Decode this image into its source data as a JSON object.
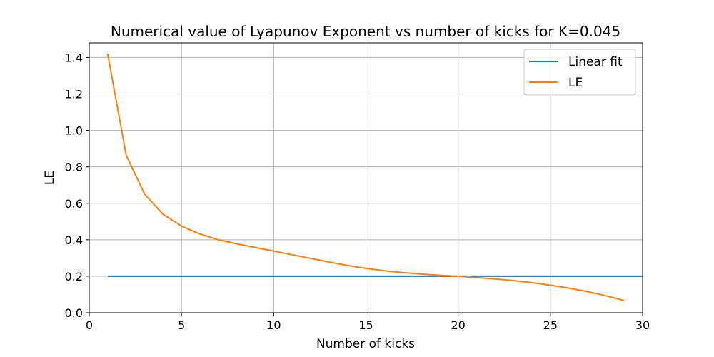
{
  "chart_data": {
    "type": "line",
    "title": "Numerical value of Lyapunov Exponent vs number of kicks for K=0.045",
    "xlabel": "Number of kicks",
    "ylabel": "LE",
    "xlim": [
      0,
      30
    ],
    "ylim": [
      0.0,
      1.48
    ],
    "xticks": [
      0,
      5,
      10,
      15,
      20,
      25,
      30
    ],
    "xtick_labels": [
      "0",
      "5",
      "10",
      "15",
      "20",
      "25",
      "30"
    ],
    "yticks": [
      0.0,
      0.2,
      0.4,
      0.6,
      0.8,
      1.0,
      1.2,
      1.4
    ],
    "ytick_labels": [
      "0.0",
      "0.2",
      "0.4",
      "0.6",
      "0.8",
      "1.0",
      "1.2",
      "1.4"
    ],
    "grid": true,
    "legend_position": "top-right",
    "series": [
      {
        "name": "Linear fit",
        "color": "#1f77b4",
        "x": [
          1,
          30
        ],
        "y": [
          0.2,
          0.2
        ]
      },
      {
        "name": "LE",
        "color": "#ff7f0e",
        "x": [
          1,
          2,
          3,
          4,
          5,
          6,
          7,
          8,
          9,
          10,
          11,
          12,
          13,
          14,
          15,
          16,
          17,
          18,
          19,
          20,
          21,
          22,
          23,
          24,
          25,
          26,
          27,
          28,
          29
        ],
        "y": [
          1.42,
          0.865,
          0.65,
          0.54,
          0.475,
          0.432,
          0.4,
          0.378,
          0.358,
          0.338,
          0.318,
          0.298,
          0.278,
          0.259,
          0.243,
          0.23,
          0.22,
          0.212,
          0.205,
          0.2,
          0.193,
          0.185,
          0.176,
          0.165,
          0.151,
          0.135,
          0.116,
          0.093,
          0.067
        ]
      }
    ]
  }
}
